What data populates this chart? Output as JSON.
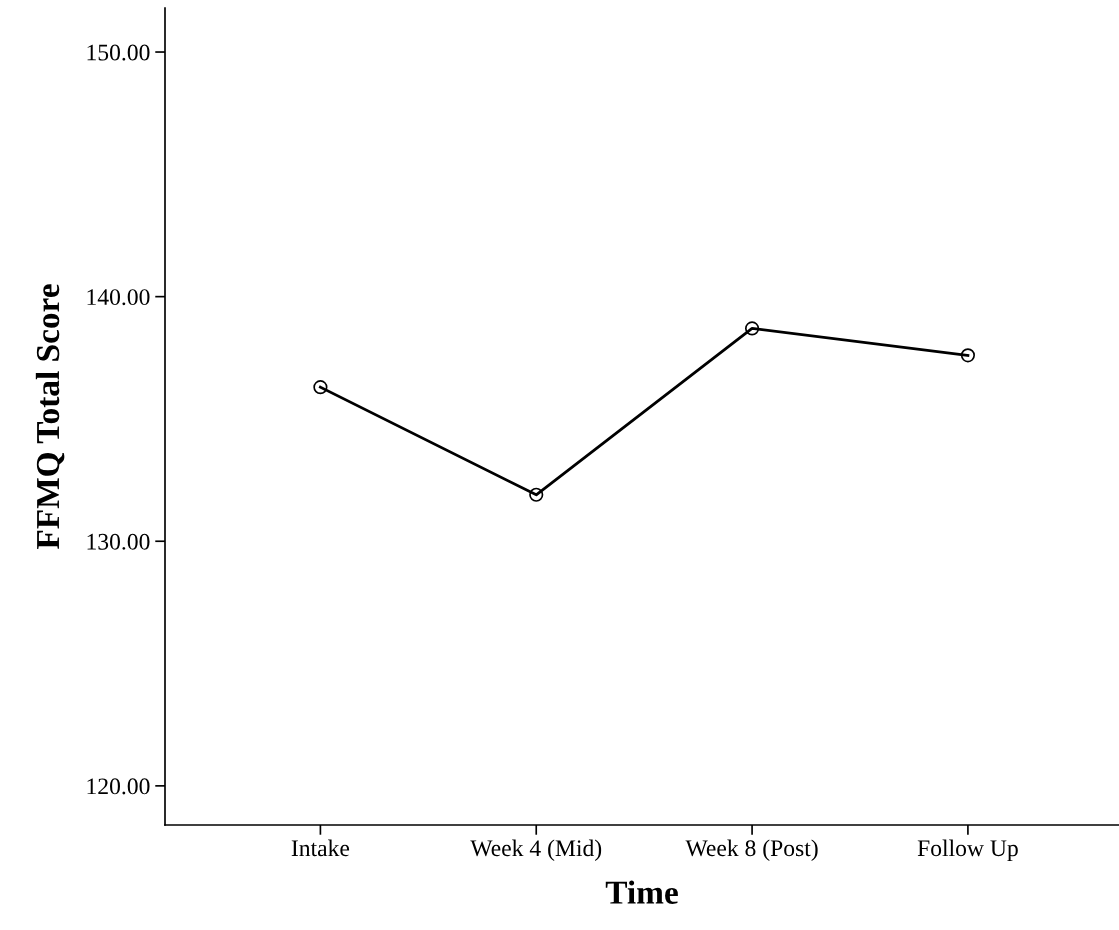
{
  "chart_data": {
    "type": "line",
    "xlabel": "Time",
    "ylabel": "FFMQ Total Score",
    "categories": [
      "Intake",
      "Week 4 (Mid)",
      "Week 8 (Post)",
      "Follow Up"
    ],
    "series": [
      {
        "color": "#000000",
        "values": [
          136.3,
          131.9,
          138.7,
          137.6
        ]
      }
    ],
    "ylim": [
      118.4,
      151.8
    ],
    "yticks": [
      {
        "value": 120,
        "label": "120.00"
      },
      {
        "value": 130,
        "label": "130.00"
      },
      {
        "value": 140,
        "label": "140.00"
      },
      {
        "value": 150,
        "label": "150.00"
      }
    ],
    "marker": "circle",
    "line_style": "solid",
    "grid": false,
    "legend": false
  }
}
